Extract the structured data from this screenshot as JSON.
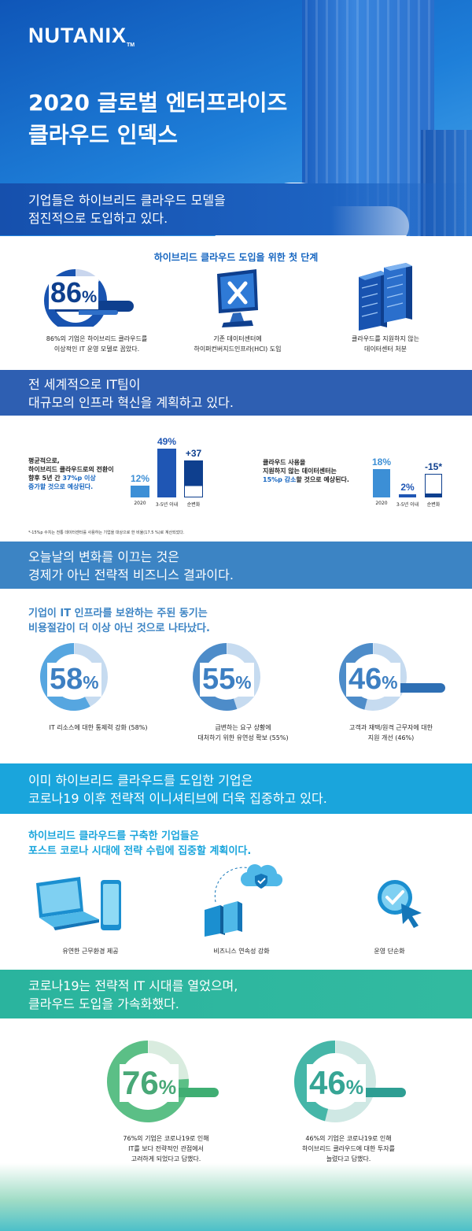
{
  "header": {
    "logo": "NUTANIX",
    "logo_tm": "TM",
    "title_line1": "2020 글로벌 엔터프라이즈",
    "title_line2": "클라우드 인덱스"
  },
  "section1": {
    "banner_line1": "기업들은 하이브리드 클라우드 모델을",
    "banner_line2": "점진적으로 도입하고 있다.",
    "subhead": "하이브리드 클라우드 도입을 위한 첫 단계",
    "gauge": {
      "value": "86",
      "unit": "%",
      "fraction": 0.86
    },
    "caption1_line1": "86%의 기업은 하이브리드 클라우드를",
    "caption1_line2": "이상적인 IT 운영 모델로 꼽았다.",
    "caption2_line1": "기존 데이터센터에",
    "caption2_line2": "하이퍼컨버지드인프라(HCI) 도입",
    "caption3_line1": "클라우드를 지원하지 않는",
    "caption3_line2": "데이터센터 처분"
  },
  "section2": {
    "banner_line1": "전 세계적으로 IT팀이",
    "banner_line2": "대규모의 인프라 혁신을 계획하고 있다.",
    "left": {
      "text_line1": "평균적으로,",
      "text_line2": "하이브리드 클라우드로의 전환이",
      "text_line3_a": "향후 5년 간 ",
      "text_line3_b": "37%p 이상",
      "text_line4": "증가할 것으로 예상된다."
    },
    "right": {
      "text_line1": "클라우드 사용을",
      "text_line2": "지원하지 않는 데이터센터는",
      "text_line3_a": "15%p 감소",
      "text_line3_b": "할 것으로 예상된다."
    },
    "footnote": "*-15%p 수치는 전통 데이터센터를 사용하는 기업을 대상으로 한 비율(17.5 %)로 계산되었다."
  },
  "chart_data": [
    {
      "type": "bar",
      "categories": [
        "2020",
        "3-5년 이내",
        "순변화"
      ],
      "values": [
        12,
        49,
        37
      ],
      "value_labels": [
        "12%",
        "49%",
        "+37"
      ],
      "ylim": [
        0,
        49
      ]
    },
    {
      "type": "bar",
      "categories": [
        "2020",
        "3-5년 이내",
        "순변화"
      ],
      "values": [
        18,
        2,
        -15
      ],
      "value_labels": [
        "18%",
        "2%",
        "-15*"
      ],
      "ylim": [
        0,
        18
      ]
    }
  ],
  "section3": {
    "banner_line1": "오늘날의 변화를 이끄는 것은",
    "banner_line2": "경제가 아닌 전략적 비즈니스 결과이다.",
    "subhead_line1": "기업이 IT 인프라를 보완하는 주된 동기는",
    "subhead_line2": "비용절감이 더 이상 아닌 것으로 나타났다.",
    "gauges": [
      {
        "value": "58",
        "unit": "%",
        "fraction": 0.58,
        "caption_line1": "IT 리소스에 대한 통제력 강화 (58%)",
        "caption_line2": ""
      },
      {
        "value": "55",
        "unit": "%",
        "fraction": 0.55,
        "caption_line1": "급변하는 요구 상황에",
        "caption_line2": "대처하기 위한 유연성 확보 (55%)"
      },
      {
        "value": "46",
        "unit": "%",
        "fraction": 0.46,
        "caption_line1": "고객과 재택/원격 근무자에 대한",
        "caption_line2": "지원 개선 (46%)"
      }
    ]
  },
  "section4": {
    "banner_line1": "이미 하이브리드 클라우드를 도입한 기업은",
    "banner_line2": "코로나19 이후 전략적 이니셔티브에 더욱 집중하고 있다.",
    "subhead_line1": "하이브리드 클라우드를 구축한 기업들은",
    "subhead_line2": "포스트 코로나 시대에 전략 수립에 집중할 계획이다.",
    "caption1": "유연한 근무환경 제공",
    "caption2": "비즈니스 연속성 강화",
    "caption3": "운영 단순화"
  },
  "section5": {
    "banner_line1": "코로나19는 전략적 IT 시대를 열었으며,",
    "banner_line2": "클라우드 도입을 가속화했다.",
    "gauges": [
      {
        "value": "76",
        "unit": "%",
        "fraction": 0.76,
        "caption_line1": "76%의 기업은 코로나19로 인해",
        "caption_line2": "IT를 보다 전략적인 관점에서",
        "caption_line3": "고려하게 되었다고 답했다."
      },
      {
        "value": "46",
        "unit": "%",
        "fraction": 0.46,
        "caption_line1": "46%의 기업은 코로나19로 인해",
        "caption_line2": "하이브리드 클라우드에 대한 투자를",
        "caption_line3": "늘렸다고 답했다."
      }
    ]
  },
  "colors": {
    "brand_blue": "#1565c0",
    "dark_blue": "#0d3d85",
    "mid_blue": "#3d82c4",
    "cyan": "#1aa4dc",
    "teal": "#2bb49a"
  }
}
